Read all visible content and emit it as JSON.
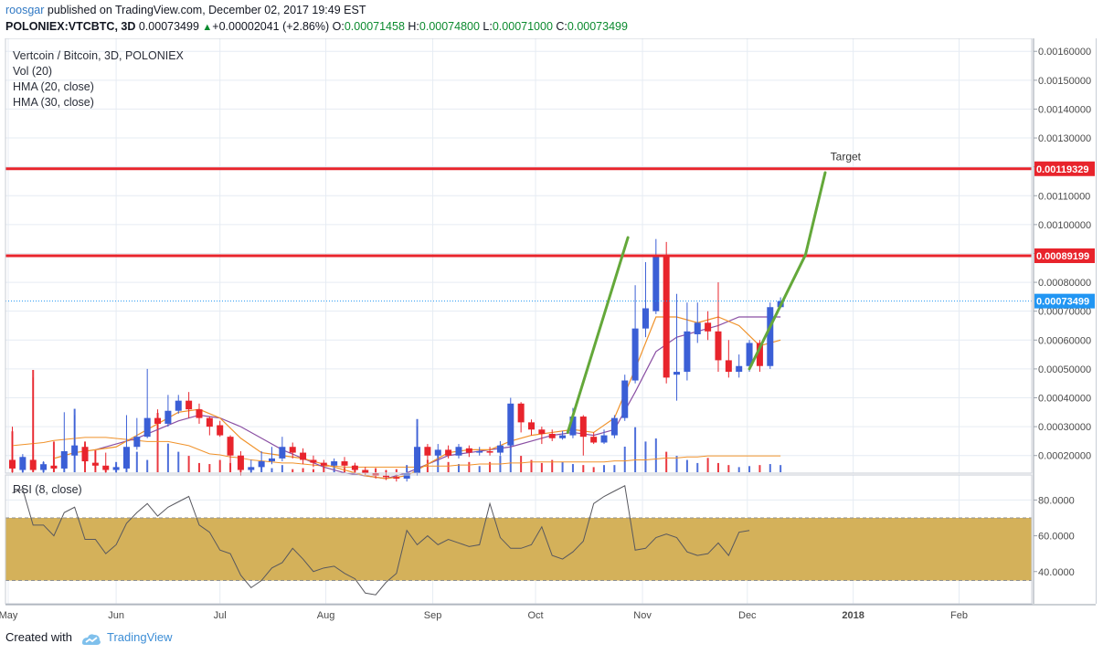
{
  "header": {
    "author": "roosgar",
    "published": "published on TradingView.com, December 02, 2017 19:49 EST",
    "symbol": "POLONIEX:VTCBTC, 3D",
    "price": "0.00073499",
    "change_arrow": "▲",
    "change": "+0.00002041 (+2.86%)",
    "o_label": "O:",
    "o_value": "0.00071458",
    "h_label": "H:",
    "h_value": "0.00074800",
    "l_label": "L:",
    "l_value": "0.00071000",
    "c_label": "C:",
    "c_value": "0.00073499"
  },
  "footer": {
    "created_with": "Created with",
    "brand": "TradingView"
  },
  "colors": {
    "up": "#3b5fd6",
    "down": "#e8242c",
    "hma20": "#f0922a",
    "hma30": "#8a4fa3",
    "volume_ma": "#f0922a",
    "level_line": "#e8242c",
    "target_arrow": "#64a83a",
    "rsi_band": "#d4b15a",
    "rsi_line": "#58585e",
    "last_price": "#2196f3"
  },
  "chart_data": [
    {
      "type": "candlestick",
      "title": "Vertcoin / Bitcoin, 3D, POLONIEX",
      "indicators": [
        "Vol (20)",
        "HMA (20, close)",
        "HMA (30, close)"
      ],
      "price_axis_ticks": [
        "0.00160000",
        "0.00150000",
        "0.00140000",
        "0.00130000",
        "0.00120000",
        "0.00110000",
        "0.00100000",
        "0.00090000",
        "0.00080000",
        "0.00070000",
        "0.00060000",
        "0.00050000",
        "0.00040000",
        "0.00030000",
        "0.00020000"
      ],
      "ylim": [
        0.000139,
        0.001645
      ],
      "time_axis_labels": [
        {
          "label": "May",
          "bar": -0.4
        },
        {
          "label": "Jun",
          "bar": 10
        },
        {
          "label": "Jul",
          "bar": 20
        },
        {
          "label": "Aug",
          "bar": 30.2
        },
        {
          "label": "Sep",
          "bar": 40.5
        },
        {
          "label": "Oct",
          "bar": 50.4
        },
        {
          "label": "Nov",
          "bar": 60.7
        },
        {
          "label": "Dec",
          "bar": 70.8
        },
        {
          "label": "2018",
          "bar": 81
        },
        {
          "label": "Feb",
          "bar": 91.2
        }
      ],
      "candles": [
        [
          0.000185,
          0.000155,
          0.0003,
          0.00014
        ],
        [
          0.00015,
          0.000195,
          0.000205,
          0.00014
        ],
        [
          0.000185,
          0.00015,
          0.00047,
          0.000145
        ],
        [
          0.00015,
          0.00017,
          0.00018,
          0.00014
        ],
        [
          0.000165,
          0.000155,
          0.000195,
          0.000145
        ],
        [
          0.000155,
          0.000215,
          0.00035,
          0.00015
        ],
        [
          0.0002,
          0.000235,
          0.00034,
          0.00019
        ],
        [
          0.00023,
          0.00018,
          0.00024,
          0.00017
        ],
        [
          0.000175,
          0.000165,
          0.000215,
          0.00015
        ],
        [
          0.000165,
          0.00015,
          0.00021,
          0.00014
        ],
        [
          0.00015,
          0.00016,
          0.00017,
          0.00014
        ],
        [
          0.000155,
          0.00023,
          0.00034,
          0.00015
        ],
        [
          0.00023,
          0.000265,
          0.00033,
          0.00022
        ],
        [
          0.000265,
          0.00033,
          0.0005,
          0.00026
        ],
        [
          0.00033,
          0.00031,
          0.00036,
          0.00029
        ],
        [
          0.00031,
          0.000355,
          0.00041,
          0.0003
        ],
        [
          0.000355,
          0.00039,
          0.00041,
          0.000345
        ],
        [
          0.00039,
          0.00036,
          0.00042,
          0.00033
        ],
        [
          0.00036,
          0.00033,
          0.00038,
          0.00031
        ],
        [
          0.00033,
          0.0003,
          0.000335,
          0.00027
        ],
        [
          0.000305,
          0.00027,
          0.00032,
          0.000265
        ],
        [
          0.000265,
          0.0002,
          0.00027,
          0.00015
        ],
        [
          0.0002,
          0.00015,
          0.000215,
          0.00013
        ],
        [
          0.00015,
          0.00016,
          0.000185,
          0.00014
        ],
        [
          0.00016,
          0.00018,
          0.000215,
          0.00015
        ],
        [
          0.00018,
          0.00019,
          0.00023,
          0.00017
        ],
        [
          0.00019,
          0.00023,
          0.000265,
          0.00018
        ],
        [
          0.00023,
          0.00021,
          0.000245,
          0.00019
        ],
        [
          0.00021,
          0.000185,
          0.000225,
          0.00017
        ],
        [
          0.000185,
          0.000175,
          0.0002,
          0.00016
        ],
        [
          0.000175,
          0.000165,
          0.000185,
          0.000155
        ],
        [
          0.000165,
          0.00018,
          0.00019,
          0.00016
        ],
        [
          0.00018,
          0.000165,
          0.000195,
          0.00015
        ],
        [
          0.000165,
          0.00015,
          0.000175,
          0.00014
        ],
        [
          0.00015,
          0.00014,
          0.00016,
          0.000132
        ],
        [
          0.00014,
          0.00013,
          0.00015,
          0.00012
        ],
        [
          0.00013,
          0.000125,
          0.00015,
          0.000115
        ],
        [
          0.000125,
          0.00012,
          0.000135,
          0.00011
        ],
        [
          0.00012,
          0.00014,
          0.000165,
          0.00011
        ],
        [
          0.00014,
          0.00023,
          0.0003,
          0.00013
        ],
        [
          0.00023,
          0.0002,
          0.00024,
          0.00018
        ],
        [
          0.0002,
          0.00022,
          0.00024,
          0.000185
        ],
        [
          0.00022,
          0.0002,
          0.000235,
          0.00019
        ],
        [
          0.0002,
          0.00023,
          0.00024,
          0.00019
        ],
        [
          0.000225,
          0.00021,
          0.000235,
          0.000195
        ],
        [
          0.00021,
          0.000215,
          0.00023,
          0.0002
        ],
        [
          0.000215,
          0.00021,
          0.00023,
          0.0002
        ],
        [
          0.00021,
          0.000235,
          0.00025,
          0.0002
        ],
        [
          0.000235,
          0.00038,
          0.0004,
          0.00023
        ],
        [
          0.00038,
          0.000315,
          0.000385,
          0.00028
        ],
        [
          0.000315,
          0.00029,
          0.000325,
          0.00027
        ],
        [
          0.00029,
          0.000275,
          0.0003,
          0.00024
        ],
        [
          0.000275,
          0.00026,
          0.00029,
          0.00025
        ],
        [
          0.00026,
          0.00027,
          0.000285,
          0.000255
        ],
        [
          0.00027,
          0.000335,
          0.000365,
          0.00026
        ],
        [
          0.000335,
          0.000265,
          0.00034,
          0.0002
        ],
        [
          0.000265,
          0.000245,
          0.00028,
          0.00024
        ],
        [
          0.000245,
          0.00027,
          0.00029,
          0.00024
        ],
        [
          0.00027,
          0.00033,
          0.00034,
          0.00026
        ],
        [
          0.00033,
          0.00046,
          0.00048,
          0.00032
        ],
        [
          0.00046,
          0.00064,
          0.00079,
          0.00045
        ],
        [
          0.00064,
          0.00071,
          0.00087,
          0.00061
        ],
        [
          0.0007,
          0.00089,
          0.00095,
          0.00069
        ],
        [
          0.00089,
          0.00047,
          0.00094,
          0.00045
        ],
        [
          0.00048,
          0.00049,
          0.00076,
          0.00039
        ],
        [
          0.00049,
          0.00063,
          0.00073,
          0.00046
        ],
        [
          0.00062,
          0.00066,
          0.00073,
          0.00059
        ],
        [
          0.00066,
          0.00063,
          0.0007,
          0.0006
        ],
        [
          0.00063,
          0.00053,
          0.0008,
          0.00049
        ],
        [
          0.00053,
          0.00049,
          0.0006,
          0.00047
        ],
        [
          0.00049,
          0.00051,
          0.00055,
          0.00047
        ],
        [
          0.00051,
          0.00059,
          0.0006,
          0.00049
        ],
        [
          0.00059,
          0.00051,
          0.0006,
          0.00049
        ],
        [
          0.00051,
          0.000714,
          0.00073,
          0.0005
        ],
        [
          0.000714,
          0.000735,
          0.000748,
          0.00071
        ]
      ],
      "volume_rel": [
        0.4,
        0.15,
        1.0,
        0.1,
        0.3,
        0.1,
        0.62,
        0.3,
        0.22,
        0.06,
        0.1,
        0.18,
        0.2,
        0.12,
        0.58,
        0.28,
        0.2,
        0.16,
        0.09,
        0.08,
        0.12,
        0.09,
        0.16,
        0.05,
        0.06,
        0.04,
        0.07,
        0.03,
        0.04,
        0.03,
        0.05,
        0.06,
        0.04,
        0.07,
        0.02,
        0.04,
        0.02,
        0.03,
        0.07,
        0.52,
        0.12,
        0.18,
        0.1,
        0.08,
        0.1,
        0.06,
        0.1,
        0.16,
        0.43,
        0.16,
        0.12,
        0.09,
        0.12,
        0.1,
        0.08,
        0.07,
        0.05,
        0.07,
        0.07,
        0.25,
        0.44,
        0.3,
        0.33,
        0.2,
        0.16,
        0.12,
        0.09,
        0.14,
        0.09,
        0.07,
        0.05,
        0.06,
        0.07,
        0.08,
        0.07
      ],
      "volume_ma_rel": [
        0.26,
        0.27,
        0.28,
        0.29,
        0.31,
        0.32,
        0.33,
        0.34,
        0.34,
        0.34,
        0.33,
        0.32,
        0.31,
        0.3,
        0.3,
        0.3,
        0.28,
        0.26,
        0.22,
        0.18,
        0.17,
        0.15,
        0.14,
        0.12,
        0.11,
        0.1,
        0.09,
        0.09,
        0.08,
        0.07,
        0.06,
        0.06,
        0.05,
        0.05,
        0.05,
        0.05,
        0.05,
        0.05,
        0.05,
        0.05,
        0.06,
        0.06,
        0.06,
        0.07,
        0.07,
        0.08,
        0.08,
        0.08,
        0.09,
        0.09,
        0.1,
        0.1,
        0.1,
        0.1,
        0.1,
        0.1,
        0.1,
        0.1,
        0.11,
        0.11,
        0.12,
        0.12,
        0.13,
        0.14,
        0.14,
        0.15,
        0.15,
        0.16,
        0.16,
        0.16,
        0.16,
        0.16,
        0.16,
        0.16,
        0.16
      ],
      "hma20": [
        [
          4,
          0.00019
        ],
        [
          6,
          0.00021
        ],
        [
          8,
          0.00022
        ],
        [
          10,
          0.00023
        ],
        [
          12,
          0.00027
        ],
        [
          14,
          0.00031
        ],
        [
          16,
          0.00035
        ],
        [
          18,
          0.00036
        ],
        [
          20,
          0.00033
        ],
        [
          22,
          0.00026
        ],
        [
          24,
          0.00021
        ],
        [
          26,
          0.0002
        ],
        [
          28,
          0.00019
        ],
        [
          30,
          0.00017
        ],
        [
          32,
          0.00015
        ],
        [
          34,
          0.00013
        ],
        [
          36,
          0.00012
        ],
        [
          38,
          0.00013
        ],
        [
          40,
          0.00017
        ],
        [
          42,
          0.00021
        ],
        [
          44,
          0.00022
        ],
        [
          46,
          0.00022
        ],
        [
          48,
          0.00025
        ],
        [
          50,
          0.00027
        ],
        [
          52,
          0.00028
        ],
        [
          54,
          0.00029
        ],
        [
          56,
          0.00028
        ],
        [
          58,
          0.00033
        ],
        [
          60,
          0.0005
        ],
        [
          62,
          0.00068
        ],
        [
          64,
          0.00068
        ],
        [
          66,
          0.00066
        ],
        [
          68,
          0.00068
        ],
        [
          70,
          0.00065
        ],
        [
          72,
          0.00058
        ],
        [
          74,
          0.0006
        ]
      ],
      "hma30": [
        [
          8,
          0.00022
        ],
        [
          10,
          0.00024
        ],
        [
          12,
          0.00026
        ],
        [
          14,
          0.00029
        ],
        [
          16,
          0.00032
        ],
        [
          18,
          0.00034
        ],
        [
          20,
          0.00033
        ],
        [
          22,
          0.0003
        ],
        [
          24,
          0.00026
        ],
        [
          26,
          0.00022
        ],
        [
          28,
          0.00019
        ],
        [
          30,
          0.00016
        ],
        [
          32,
          0.00014
        ],
        [
          34,
          0.00013
        ],
        [
          36,
          0.00012
        ],
        [
          38,
          0.00014
        ],
        [
          40,
          0.00017
        ],
        [
          42,
          0.0002
        ],
        [
          44,
          0.00021
        ],
        [
          46,
          0.00022
        ],
        [
          48,
          0.00023
        ],
        [
          50,
          0.00025
        ],
        [
          52,
          0.00027
        ],
        [
          54,
          0.00028
        ],
        [
          56,
          0.00027
        ],
        [
          58,
          0.00029
        ],
        [
          60,
          0.00042
        ],
        [
          62,
          0.00056
        ],
        [
          64,
          0.00061
        ],
        [
          66,
          0.00063
        ],
        [
          68,
          0.00065
        ],
        [
          70,
          0.00068
        ],
        [
          72,
          0.00068
        ],
        [
          74,
          0.00068
        ]
      ],
      "horizontal_levels": [
        {
          "value": 0.00119329,
          "label": "0.00119329"
        },
        {
          "value": 0.00089199,
          "label": "0.00089199"
        }
      ],
      "last_price": {
        "value": 0.00073499,
        "label": "0.00073499"
      },
      "annotation": {
        "text": "Target"
      },
      "trend_lines": [
        {
          "from": [
            53.5,
            0.00028
          ],
          "to": [
            59.3,
            0.000955
          ]
        },
        {
          "from": [
            71,
            0.0005
          ],
          "to": [
            76.4,
            0.000895
          ]
        },
        {
          "from": [
            76.4,
            0.000895
          ],
          "to": [
            78.3,
            0.00118
          ]
        }
      ]
    },
    {
      "type": "line",
      "title": "RSI (8, close)",
      "ylim": [
        22,
        94
      ],
      "y_ticks": [
        "80.0000",
        "60.0000",
        "40.0000"
      ],
      "band": [
        35,
        70
      ],
      "values": [
        84,
        86,
        66,
        66,
        60,
        73,
        76,
        58,
        58,
        50,
        55,
        67,
        73,
        78,
        71,
        76,
        79,
        82,
        66,
        62,
        52,
        50,
        38,
        31,
        35,
        42,
        45,
        53,
        47,
        40,
        42,
        43,
        39,
        36,
        28,
        27,
        34,
        39,
        63,
        55,
        60,
        55,
        58,
        56,
        54,
        55,
        78,
        59,
        53,
        53,
        55,
        65,
        49,
        47,
        51,
        57,
        78,
        82,
        85,
        88,
        52,
        53,
        59,
        61,
        59,
        51,
        49,
        50,
        56,
        49,
        62,
        63
      ]
    }
  ]
}
